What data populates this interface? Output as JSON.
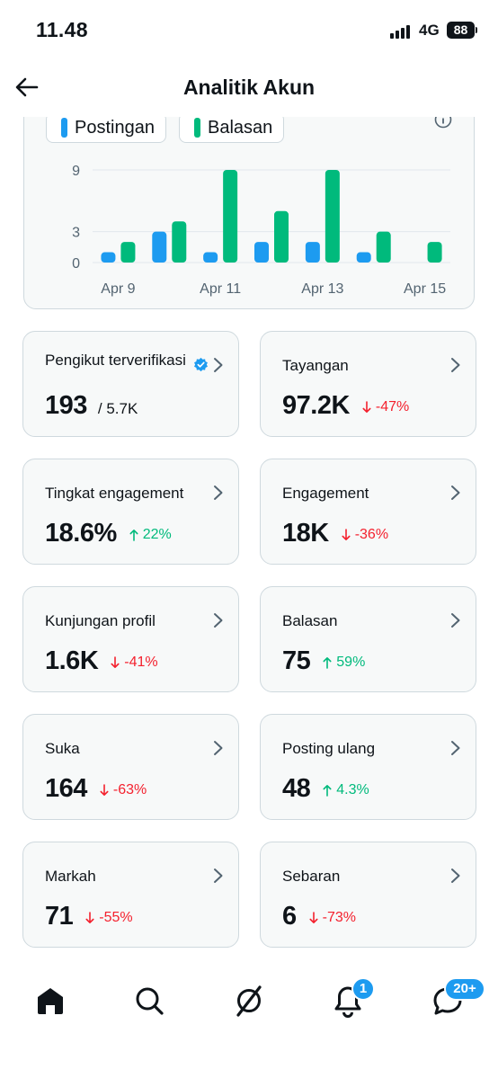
{
  "status_bar": {
    "time": "11.48",
    "network": "4G",
    "battery": "88"
  },
  "header": {
    "title": "Analitik Akun"
  },
  "chart_data": {
    "type": "bar",
    "series": [
      {
        "name": "Postingan",
        "color": "#1d9bf0",
        "values": [
          1,
          3,
          1,
          2,
          2,
          1,
          0
        ]
      },
      {
        "name": "Balasan",
        "color": "#00ba7c",
        "values": [
          2,
          4,
          9,
          5,
          9,
          3,
          2
        ]
      }
    ],
    "x_tick_labels": [
      "Apr 9",
      "Apr 11",
      "Apr 13",
      "Apr 15"
    ],
    "y_tick_labels": [
      "0",
      "3",
      "9"
    ],
    "ylim": [
      0,
      9
    ],
    "grid": true,
    "legend_position": "top-left"
  },
  "stats": [
    {
      "label": "Pengikut terverifikasi",
      "value": "193",
      "sub": "/ 5.7K",
      "verified": true
    },
    {
      "label": "Tayangan",
      "value": "97.2K",
      "change": "-47%",
      "direction": "down"
    },
    {
      "label": "Tingkat engagement",
      "value": "18.6%",
      "change": "22%",
      "direction": "up"
    },
    {
      "label": "Engagement",
      "value": "18K",
      "change": "-36%",
      "direction": "down"
    },
    {
      "label": "Kunjungan profil",
      "value": "1.6K",
      "change": "-41%",
      "direction": "down"
    },
    {
      "label": "Balasan",
      "value": "75",
      "change": "59%",
      "direction": "up"
    },
    {
      "label": "Suka",
      "value": "164",
      "change": "-63%",
      "direction": "down"
    },
    {
      "label": "Posting ulang",
      "value": "48",
      "change": "4.3%",
      "direction": "up"
    },
    {
      "label": "Markah",
      "value": "71",
      "change": "-55%",
      "direction": "down"
    },
    {
      "label": "Sebaran",
      "value": "6",
      "change": "-73%",
      "direction": "down"
    }
  ],
  "nav": {
    "items": [
      {
        "icon": "home-icon"
      },
      {
        "icon": "search-icon"
      },
      {
        "icon": "grok-icon"
      },
      {
        "icon": "notifications-icon",
        "badge": "1"
      },
      {
        "icon": "messages-icon",
        "badge": "20+"
      }
    ]
  },
  "colors": {
    "accent": "#1d9bf0",
    "green": "#00ba7c",
    "red": "#f4212e",
    "border": "#cfd9de",
    "card_bg": "#f7f9f9"
  }
}
